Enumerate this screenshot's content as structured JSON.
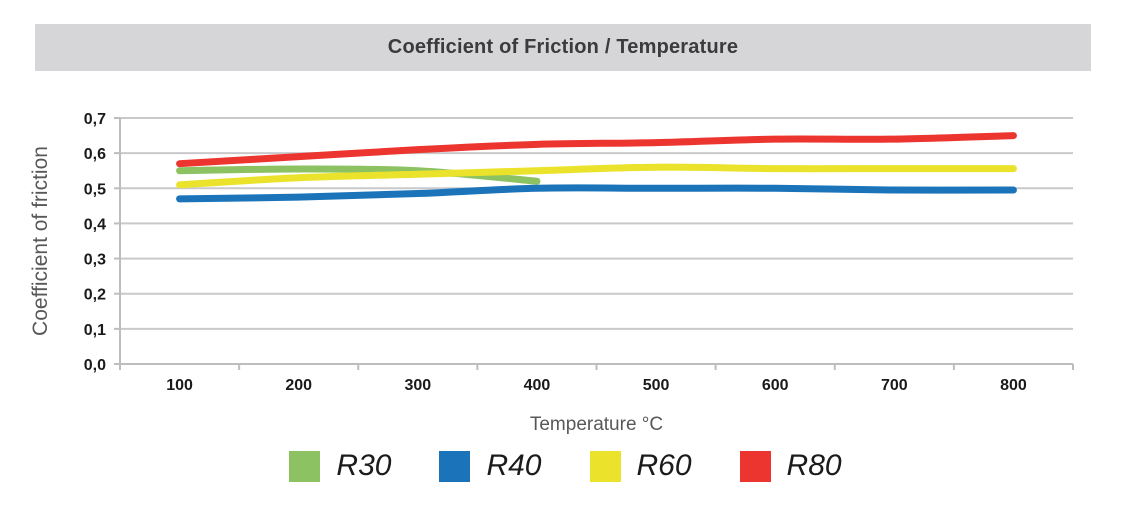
{
  "chart_data": {
    "type": "line",
    "title": "Coefficient of Friction / Temperature",
    "xlabel": "Temperature °C",
    "ylabel": "Coefficient of friction",
    "categories": [
      100,
      200,
      300,
      400,
      500,
      600,
      700,
      800
    ],
    "x_tick_labels": [
      "100",
      "200",
      "300",
      "400",
      "500",
      "600",
      "700",
      "800"
    ],
    "y_ticks": [
      "0,0",
      "0,1",
      "0,2",
      "0,3",
      "0,4",
      "0,5",
      "0,6",
      "0,7"
    ],
    "y_step": 0.1,
    "ylim": [
      0,
      0.7
    ],
    "decimal_separator": ",",
    "grid": "horizontal",
    "line_style": "smooth",
    "legend_position": "bottom",
    "series": [
      {
        "name": "R30",
        "color": "#8DC262",
        "values": [
          0.55,
          0.555,
          0.55,
          0.52
        ]
      },
      {
        "name": "R40",
        "color": "#1B74BA",
        "values": [
          0.47,
          0.475,
          0.485,
          0.5,
          0.5,
          0.5,
          0.495,
          0.495
        ]
      },
      {
        "name": "R60",
        "color": "#EBE32B",
        "values": [
          0.51,
          0.53,
          0.54,
          0.55,
          0.56,
          0.556,
          0.556,
          0.556
        ]
      },
      {
        "name": "R80",
        "color": "#ED3530",
        "values": [
          0.57,
          0.59,
          0.61,
          0.625,
          0.63,
          0.64,
          0.64,
          0.65
        ]
      }
    ],
    "colors": {
      "grid": "#C9C9CB",
      "axis": "#BDBDBF",
      "tick_text": "#1A1A1A",
      "axis_title_text": "#58585A",
      "title_text": "#3B3B3D",
      "title_band_bg": "#D6D6D8"
    }
  }
}
